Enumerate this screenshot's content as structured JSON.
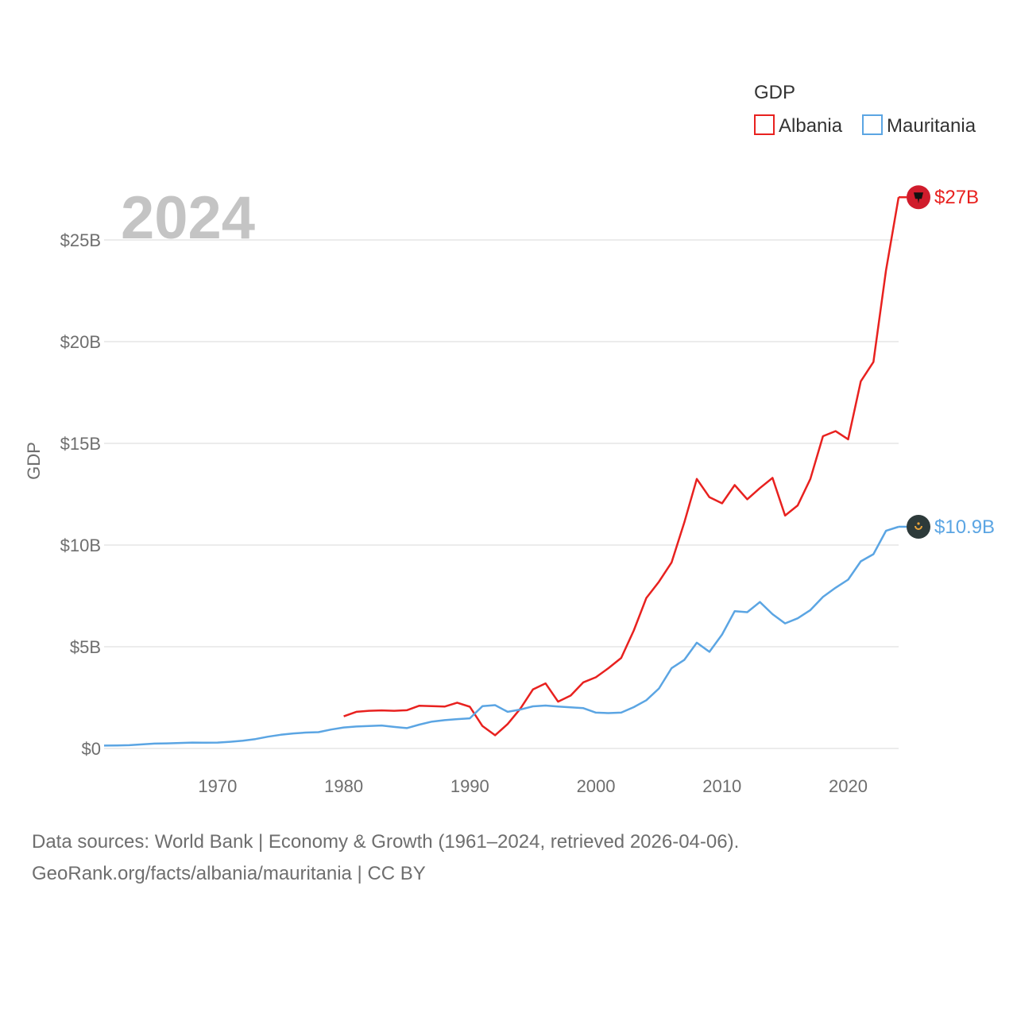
{
  "chart_data": {
    "type": "line",
    "title": "GDP",
    "year_label": "2024",
    "ylabel": "GDP",
    "xlabel": "",
    "xlim": [
      1961,
      2024
    ],
    "ylim": [
      0,
      27
    ],
    "x_ticks": [
      1970,
      1980,
      1990,
      2000,
      2010,
      2020
    ],
    "y_ticks": [
      {
        "value": 0,
        "label": "$0"
      },
      {
        "value": 5,
        "label": "$5B"
      },
      {
        "value": 10,
        "label": "$10B"
      },
      {
        "value": 15,
        "label": "$15B"
      },
      {
        "value": 20,
        "label": "$20B"
      },
      {
        "value": 25,
        "label": "$25B"
      }
    ],
    "legend_title": "GDP",
    "legend_position": "top-right",
    "series": [
      {
        "name": "Albania",
        "color": "#e8211f",
        "end_label": "$27B",
        "end_value": 27.1,
        "marker_icon": "albania-flag-icon",
        "marker_color": "#d01c2c",
        "x": [
          1980,
          1981,
          1982,
          1983,
          1984,
          1985,
          1986,
          1987,
          1988,
          1989,
          1990,
          1991,
          1992,
          1993,
          1994,
          1995,
          1996,
          1997,
          1998,
          1999,
          2000,
          2001,
          2002,
          2003,
          2004,
          2005,
          2006,
          2007,
          2008,
          2009,
          2010,
          2011,
          2012,
          2013,
          2014,
          2015,
          2016,
          2017,
          2018,
          2019,
          2020,
          2021,
          2022,
          2023,
          2024
        ],
        "values": [
          1.58,
          1.8,
          1.85,
          1.87,
          1.85,
          1.88,
          2.1,
          2.08,
          2.06,
          2.25,
          2.05,
          1.1,
          0.65,
          1.2,
          1.95,
          2.9,
          3.2,
          2.3,
          2.6,
          3.25,
          3.5,
          3.95,
          4.45,
          5.8,
          7.4,
          8.2,
          9.15,
          11.1,
          13.25,
          12.35,
          12.05,
          12.95,
          12.25,
          12.8,
          13.3,
          11.45,
          11.95,
          13.25,
          15.35,
          15.6,
          15.2,
          18.05,
          19.0,
          23.5,
          27.1
        ]
      },
      {
        "name": "Mauritania",
        "color": "#5ba5e3",
        "end_label": "$10.9B",
        "end_value": 10.9,
        "marker_icon": "mauritania-flag-icon",
        "marker_color": "#2d3a3a",
        "x": [
          1961,
          1962,
          1963,
          1964,
          1965,
          1966,
          1967,
          1968,
          1969,
          1970,
          1971,
          1972,
          1973,
          1974,
          1975,
          1976,
          1977,
          1978,
          1979,
          1980,
          1981,
          1982,
          1983,
          1984,
          1985,
          1986,
          1987,
          1988,
          1989,
          1990,
          1991,
          1992,
          1993,
          1994,
          1995,
          1996,
          1997,
          1998,
          1999,
          2000,
          2001,
          2002,
          2003,
          2004,
          2005,
          2006,
          2007,
          2008,
          2009,
          2010,
          2011,
          2012,
          2013,
          2014,
          2015,
          2016,
          2017,
          2018,
          2019,
          2020,
          2021,
          2022,
          2023,
          2024
        ],
        "values": [
          0.14,
          0.15,
          0.16,
          0.2,
          0.24,
          0.25,
          0.27,
          0.29,
          0.28,
          0.29,
          0.33,
          0.38,
          0.46,
          0.58,
          0.67,
          0.74,
          0.78,
          0.8,
          0.93,
          1.03,
          1.08,
          1.1,
          1.13,
          1.06,
          1.0,
          1.17,
          1.32,
          1.39,
          1.44,
          1.48,
          2.08,
          2.13,
          1.8,
          1.91,
          2.07,
          2.11,
          2.06,
          2.02,
          1.98,
          1.76,
          1.74,
          1.76,
          2.03,
          2.37,
          2.95,
          3.95,
          4.35,
          5.2,
          4.75,
          5.6,
          6.75,
          6.7,
          7.2,
          6.6,
          6.15,
          6.4,
          6.8,
          7.45,
          7.9,
          8.3,
          9.2,
          9.55,
          10.7,
          10.9
        ]
      }
    ]
  },
  "source": {
    "line1": "Data sources: World Bank | Economy & Growth (1961–2024, retrieved 2026-04-06).",
    "line2": "GeoRank.org/facts/albania/mauritania | CC BY"
  }
}
